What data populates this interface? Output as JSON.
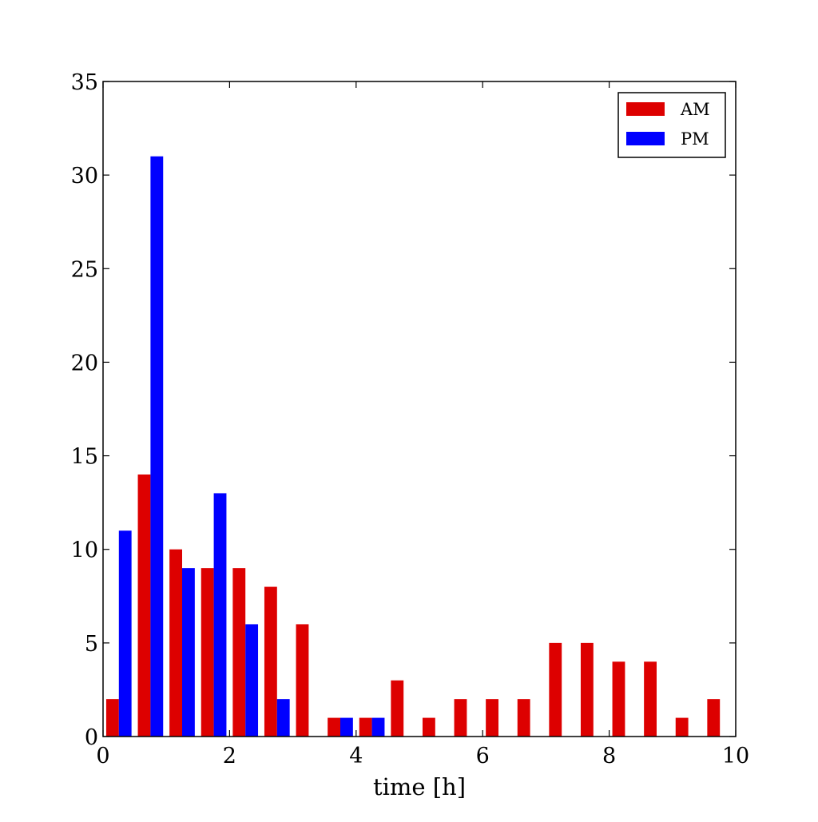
{
  "chart_data": {
    "type": "bar",
    "xlabel": "time [h]",
    "ylabel": "",
    "xlim": [
      0,
      10
    ],
    "ylim": [
      0,
      35
    ],
    "x_ticks": [
      0,
      2,
      4,
      6,
      8,
      10
    ],
    "y_ticks": [
      0,
      5,
      10,
      15,
      20,
      25,
      30,
      35
    ],
    "x_tick_labels": [
      "0",
      "2",
      "4",
      "6",
      "8",
      "10"
    ],
    "y_tick_labels": [
      "0",
      "5",
      "10",
      "15",
      "20",
      "25",
      "30",
      "35"
    ],
    "grid": false,
    "legend_position": "top-right",
    "bin_edges": [
      0,
      0.5,
      1,
      1.5,
      2,
      2.5,
      3,
      3.5,
      4,
      4.5,
      5,
      5.5,
      6,
      6.5,
      7,
      7.5,
      8,
      8.5,
      9,
      9.5,
      10
    ],
    "series": [
      {
        "name": "AM",
        "color": "#dd0000",
        "values": [
          2,
          14,
          10,
          9,
          9,
          8,
          6,
          1,
          1,
          3,
          1,
          2,
          2,
          2,
          5,
          5,
          4,
          4,
          1,
          2
        ]
      },
      {
        "name": "PM",
        "color": "#0000ff",
        "values": [
          11,
          31,
          9,
          13,
          6,
          2,
          0,
          1,
          1,
          0,
          0,
          0,
          0,
          0,
          0,
          0,
          0,
          0,
          0,
          0
        ]
      }
    ]
  }
}
